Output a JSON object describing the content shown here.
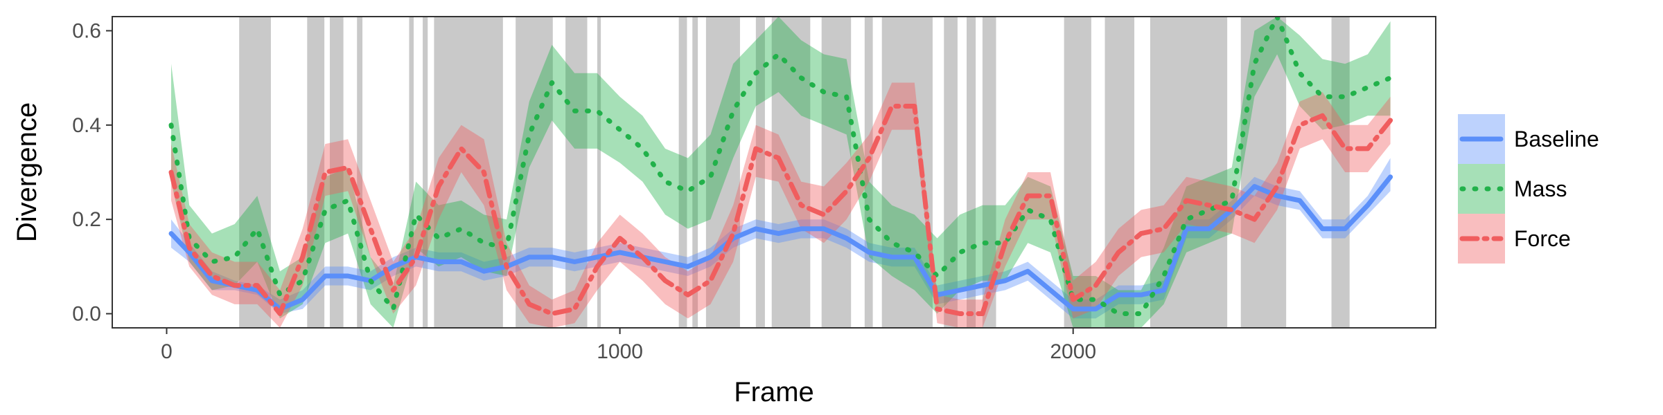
{
  "chart_data": {
    "type": "line",
    "title": "",
    "xlabel": "Frame",
    "ylabel": "Divergence",
    "xlim": [
      -120,
      2800
    ],
    "ylim": [
      -0.03,
      0.63
    ],
    "x_ticks": [
      0,
      1000,
      2000
    ],
    "x_tick_labels": [
      "0",
      "1000",
      "2000"
    ],
    "y_ticks": [
      0.0,
      0.2,
      0.4,
      0.6
    ],
    "y_tick_labels": [
      "0.0",
      "0.2",
      "0.4",
      "0.6"
    ],
    "grid": false,
    "legend": {
      "position": "right",
      "entries": [
        "Baseline",
        "Mass",
        "Force"
      ]
    },
    "shaded_regions": [
      [
        160,
        230
      ],
      [
        310,
        348
      ],
      [
        360,
        390
      ],
      [
        420,
        432
      ],
      [
        535,
        545
      ],
      [
        565,
        576
      ],
      [
        590,
        742
      ],
      [
        770,
        852
      ],
      [
        880,
        928
      ],
      [
        950,
        958
      ],
      [
        1130,
        1148
      ],
      [
        1160,
        1172
      ],
      [
        1190,
        1265
      ],
      [
        1300,
        1320
      ],
      [
        1335,
        1420
      ],
      [
        1445,
        1510
      ],
      [
        1540,
        1558
      ],
      [
        1578,
        1690
      ],
      [
        1715,
        1745
      ],
      [
        1765,
        1785
      ],
      [
        1800,
        1830
      ],
      [
        1980,
        2040
      ],
      [
        2070,
        2135
      ],
      [
        2170,
        2340
      ],
      [
        2370,
        2470
      ],
      [
        2570,
        2610
      ]
    ],
    "series": [
      {
        "name": "Baseline",
        "color": "#5b8ff9",
        "dash": "solid",
        "x": [
          10,
          50,
          100,
          150,
          200,
          250,
          300,
          350,
          400,
          450,
          500,
          550,
          600,
          650,
          700,
          750,
          800,
          850,
          900,
          950,
          1000,
          1050,
          1100,
          1150,
          1200,
          1250,
          1300,
          1350,
          1400,
          1450,
          1500,
          1550,
          1600,
          1650,
          1700,
          1750,
          1800,
          1850,
          1900,
          1950,
          2000,
          2050,
          2100,
          2150,
          2200,
          2250,
          2300,
          2350,
          2400,
          2450,
          2500,
          2550,
          2600,
          2650,
          2700
        ],
        "y": [
          0.17,
          0.13,
          0.07,
          0.06,
          0.05,
          0.01,
          0.03,
          0.08,
          0.08,
          0.07,
          0.1,
          0.12,
          0.11,
          0.11,
          0.09,
          0.1,
          0.12,
          0.12,
          0.11,
          0.12,
          0.13,
          0.12,
          0.11,
          0.1,
          0.12,
          0.16,
          0.18,
          0.17,
          0.18,
          0.18,
          0.16,
          0.13,
          0.12,
          0.12,
          0.04,
          0.05,
          0.06,
          0.07,
          0.09,
          0.05,
          0.01,
          0.01,
          0.04,
          0.04,
          0.05,
          0.18,
          0.18,
          0.22,
          0.27,
          0.25,
          0.24,
          0.18,
          0.18,
          0.23,
          0.29
        ],
        "lower": [
          0.14,
          0.11,
          0.05,
          0.05,
          0.04,
          0.0,
          0.01,
          0.06,
          0.06,
          0.05,
          0.08,
          0.1,
          0.09,
          0.09,
          0.07,
          0.08,
          0.1,
          0.1,
          0.09,
          0.1,
          0.11,
          0.1,
          0.09,
          0.08,
          0.1,
          0.14,
          0.16,
          0.15,
          0.16,
          0.16,
          0.14,
          0.11,
          0.1,
          0.1,
          0.02,
          0.03,
          0.04,
          0.05,
          0.07,
          0.03,
          -0.01,
          -0.01,
          0.02,
          0.02,
          0.03,
          0.16,
          0.16,
          0.2,
          0.25,
          0.23,
          0.22,
          0.16,
          0.16,
          0.21,
          0.26
        ],
        "upper": [
          0.2,
          0.15,
          0.09,
          0.07,
          0.06,
          0.03,
          0.05,
          0.1,
          0.1,
          0.09,
          0.12,
          0.14,
          0.13,
          0.13,
          0.11,
          0.12,
          0.14,
          0.14,
          0.13,
          0.14,
          0.15,
          0.14,
          0.13,
          0.12,
          0.14,
          0.18,
          0.2,
          0.19,
          0.2,
          0.2,
          0.18,
          0.15,
          0.14,
          0.14,
          0.06,
          0.07,
          0.08,
          0.09,
          0.11,
          0.07,
          0.03,
          0.03,
          0.06,
          0.06,
          0.07,
          0.2,
          0.2,
          0.24,
          0.29,
          0.27,
          0.26,
          0.2,
          0.2,
          0.25,
          0.33
        ]
      },
      {
        "name": "Mass",
        "color": "#21b14a",
        "dash": "dotted",
        "x": [
          10,
          50,
          100,
          150,
          200,
          250,
          300,
          350,
          400,
          450,
          500,
          550,
          600,
          650,
          700,
          750,
          800,
          850,
          900,
          950,
          1000,
          1050,
          1100,
          1150,
          1200,
          1250,
          1300,
          1350,
          1400,
          1450,
          1500,
          1550,
          1600,
          1650,
          1700,
          1750,
          1800,
          1850,
          1900,
          1950,
          2000,
          2050,
          2100,
          2150,
          2200,
          2250,
          2300,
          2350,
          2400,
          2450,
          2500,
          2550,
          2600,
          2650,
          2700
        ],
        "y": [
          0.4,
          0.16,
          0.11,
          0.12,
          0.18,
          0.04,
          0.07,
          0.22,
          0.24,
          0.07,
          0.01,
          0.21,
          0.16,
          0.18,
          0.15,
          0.14,
          0.38,
          0.49,
          0.43,
          0.43,
          0.39,
          0.35,
          0.28,
          0.26,
          0.29,
          0.43,
          0.51,
          0.55,
          0.5,
          0.47,
          0.46,
          0.2,
          0.15,
          0.13,
          0.08,
          0.13,
          0.15,
          0.15,
          0.22,
          0.2,
          0.03,
          0.03,
          0.0,
          0.0,
          0.08,
          0.2,
          0.22,
          0.24,
          0.53,
          0.63,
          0.51,
          0.46,
          0.46,
          0.48,
          0.5
        ],
        "lower": [
          0.28,
          0.11,
          0.05,
          0.06,
          0.11,
          -0.01,
          0.02,
          0.15,
          0.17,
          0.02,
          -0.03,
          0.14,
          0.1,
          0.12,
          0.09,
          0.08,
          0.31,
          0.41,
          0.35,
          0.35,
          0.32,
          0.28,
          0.21,
          0.18,
          0.2,
          0.33,
          0.44,
          0.47,
          0.42,
          0.4,
          0.38,
          0.12,
          0.08,
          0.05,
          0.0,
          0.05,
          0.07,
          0.07,
          0.15,
          0.13,
          -0.03,
          -0.03,
          -0.03,
          -0.03,
          0.02,
          0.13,
          0.15,
          0.17,
          0.46,
          0.55,
          0.44,
          0.39,
          0.4,
          0.42,
          0.42
        ],
        "upper": [
          0.53,
          0.23,
          0.17,
          0.19,
          0.25,
          0.09,
          0.12,
          0.29,
          0.31,
          0.12,
          0.06,
          0.28,
          0.23,
          0.24,
          0.21,
          0.2,
          0.45,
          0.57,
          0.51,
          0.51,
          0.46,
          0.42,
          0.35,
          0.33,
          0.38,
          0.53,
          0.58,
          0.63,
          0.58,
          0.55,
          0.54,
          0.28,
          0.23,
          0.21,
          0.16,
          0.21,
          0.23,
          0.23,
          0.29,
          0.27,
          0.08,
          0.08,
          0.05,
          0.05,
          0.14,
          0.27,
          0.29,
          0.31,
          0.6,
          0.63,
          0.59,
          0.54,
          0.53,
          0.55,
          0.62
        ]
      },
      {
        "name": "Force",
        "color": "#f05d5e",
        "dash": "dashdot",
        "x": [
          10,
          50,
          100,
          150,
          200,
          250,
          300,
          350,
          400,
          450,
          500,
          550,
          600,
          650,
          700,
          750,
          800,
          850,
          900,
          950,
          1000,
          1050,
          1100,
          1150,
          1200,
          1250,
          1300,
          1350,
          1400,
          1450,
          1500,
          1550,
          1600,
          1650,
          1700,
          1750,
          1800,
          1850,
          1900,
          1950,
          2000,
          2050,
          2100,
          2150,
          2200,
          2250,
          2300,
          2350,
          2400,
          2450,
          2500,
          2550,
          2600,
          2650,
          2700
        ],
        "y": [
          0.3,
          0.14,
          0.08,
          0.06,
          0.06,
          0.0,
          0.12,
          0.3,
          0.31,
          0.18,
          0.05,
          0.12,
          0.27,
          0.35,
          0.3,
          0.1,
          0.02,
          0.0,
          0.01,
          0.1,
          0.16,
          0.12,
          0.07,
          0.04,
          0.07,
          0.17,
          0.35,
          0.33,
          0.23,
          0.21,
          0.26,
          0.33,
          0.44,
          0.44,
          0.01,
          0.0,
          0.0,
          0.15,
          0.25,
          0.25,
          0.03,
          0.06,
          0.13,
          0.17,
          0.18,
          0.24,
          0.23,
          0.22,
          0.2,
          0.27,
          0.4,
          0.42,
          0.35,
          0.35,
          0.41
        ],
        "lower": [
          0.24,
          0.1,
          0.04,
          0.02,
          0.02,
          -0.03,
          0.06,
          0.25,
          0.26,
          0.12,
          0.0,
          0.06,
          0.2,
          0.3,
          0.23,
          0.05,
          -0.02,
          -0.03,
          -0.02,
          0.05,
          0.11,
          0.07,
          0.02,
          -0.01,
          0.02,
          0.11,
          0.29,
          0.28,
          0.18,
          0.15,
          0.2,
          0.28,
          0.39,
          0.39,
          -0.02,
          -0.03,
          -0.03,
          0.1,
          0.2,
          0.2,
          -0.01,
          0.01,
          0.08,
          0.12,
          0.13,
          0.19,
          0.18,
          0.17,
          0.15,
          0.22,
          0.35,
          0.37,
          0.3,
          0.3,
          0.36
        ],
        "upper": [
          0.36,
          0.19,
          0.13,
          0.11,
          0.11,
          0.05,
          0.18,
          0.36,
          0.37,
          0.24,
          0.11,
          0.18,
          0.33,
          0.4,
          0.37,
          0.15,
          0.06,
          0.03,
          0.05,
          0.15,
          0.21,
          0.17,
          0.12,
          0.09,
          0.12,
          0.23,
          0.4,
          0.38,
          0.28,
          0.27,
          0.32,
          0.38,
          0.49,
          0.49,
          0.04,
          0.03,
          0.03,
          0.2,
          0.3,
          0.3,
          0.07,
          0.11,
          0.18,
          0.22,
          0.23,
          0.29,
          0.28,
          0.27,
          0.25,
          0.32,
          0.45,
          0.47,
          0.4,
          0.4,
          0.46
        ]
      }
    ]
  }
}
